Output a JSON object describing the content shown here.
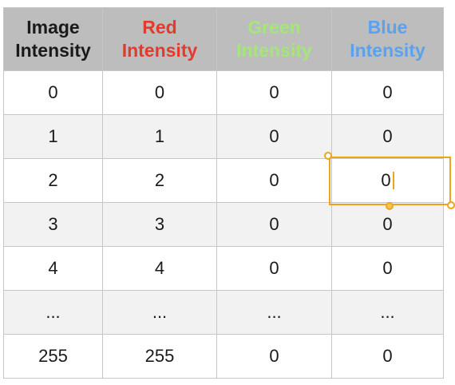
{
  "table": {
    "headers": [
      {
        "line1": "Image",
        "line2": "Intensity",
        "color": "#1a1a1a"
      },
      {
        "line1": "Red",
        "line2": "Intensity",
        "color": "#e23b2e"
      },
      {
        "line1": "Green",
        "line2": "Intensity",
        "color": "#a6e57a"
      },
      {
        "line1": "Blue",
        "line2": "Intensity",
        "color": "#5aa2ef"
      }
    ],
    "rows": [
      [
        "0",
        "0",
        "0",
        "0"
      ],
      [
        "1",
        "1",
        "0",
        "0"
      ],
      [
        "2",
        "2",
        "0",
        "0"
      ],
      [
        "3",
        "3",
        "0",
        "0"
      ],
      [
        "4",
        "4",
        "0",
        "0"
      ],
      [
        "...",
        "...",
        "...",
        "..."
      ],
      [
        "255",
        "255",
        "0",
        "0"
      ]
    ]
  },
  "selection": {
    "accent_color": "#f0a21a",
    "selected_cell": "row 3, Blue Intensity"
  }
}
